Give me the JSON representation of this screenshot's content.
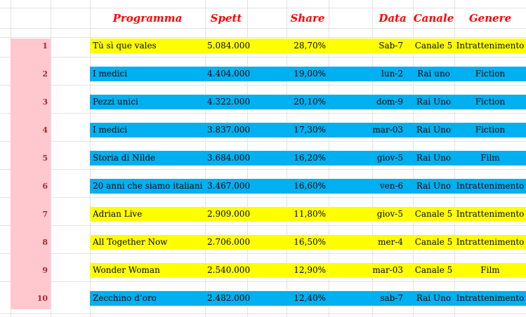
{
  "sheet": {
    "colors": {
      "canale5_fill": "#FFFF00",
      "raiuno_fill": "#00B0F0",
      "rownum_fill": "#FFC7CE",
      "rownum_text": "#9C2B35",
      "header_text": "#FF0000",
      "gridline": "#e2e2e2"
    },
    "header": {
      "programma": "Programma",
      "spett": "Spett",
      "share": "Share",
      "data": "Data",
      "canale": "Canale",
      "genere": "Genere"
    },
    "rows": [
      {
        "n": "1",
        "programma": "Tù sì que vales",
        "spett": "5.084.000",
        "share": "28,70%",
        "data": "Sab-7",
        "canale": "Canale 5",
        "genere": "Intrattenimento",
        "fill": "#FFFF00"
      },
      {
        "n": "2",
        "programma": "I medici",
        "spett": "4.404.000",
        "share": "19,00%",
        "data": "lun-2",
        "canale": "Rai uno",
        "genere": "Fiction",
        "fill": "#00B0F0"
      },
      {
        "n": "3",
        "programma": "Pezzi unici",
        "spett": "4.322.000",
        "share": "20,10%",
        "data": "dom-9",
        "canale": "Rai Uno",
        "genere": "Fiction",
        "fill": "#00B0F0"
      },
      {
        "n": "4",
        "programma": "I medici",
        "spett": "3.837.000",
        "share": "17,30%",
        "data": "mar-03",
        "canale": "Rai Uno",
        "genere": "Fiction",
        "fill": "#00B0F0"
      },
      {
        "n": "5",
        "programma": "Storia di Nilde",
        "spett": "3.684.000",
        "share": "16,20%",
        "data": "giov-5",
        "canale": "Rai Uno",
        "genere": "Film",
        "fill": "#00B0F0"
      },
      {
        "n": "6",
        "programma": "20 anni che siamo italiani",
        "spett": "3.467.000",
        "share": "16,60%",
        "data": "ven-6",
        "canale": "Rai Uno",
        "genere": "Intrattenimento",
        "fill": "#00B0F0"
      },
      {
        "n": "7",
        "programma": "Adrian Live",
        "spett": "2.909.000",
        "share": "11,80%",
        "data": "giov-5",
        "canale": "Canale 5",
        "genere": "Intrattenimento",
        "fill": "#FFFF00"
      },
      {
        "n": "8",
        "programma": "All Together Now",
        "spett": "2.706.000",
        "share": "16,50%",
        "data": "mer-4",
        "canale": "Canale 5",
        "genere": "Intrattenimento",
        "fill": "#FFFF00"
      },
      {
        "n": "9",
        "programma": "Wonder Woman",
        "spett": "2.540.000",
        "share": "12,90%",
        "data": "mar-03",
        "canale": "Canale 5",
        "genere": "Film",
        "fill": "#FFFF00"
      },
      {
        "n": "10",
        "programma": "Zecchino d’oro",
        "spett": "2.482.000",
        "share": "12,40%",
        "data": "sab-7",
        "canale": "Rai Uno",
        "genere": "Intrattenimento",
        "fill": "#00B0F0"
      }
    ]
  }
}
